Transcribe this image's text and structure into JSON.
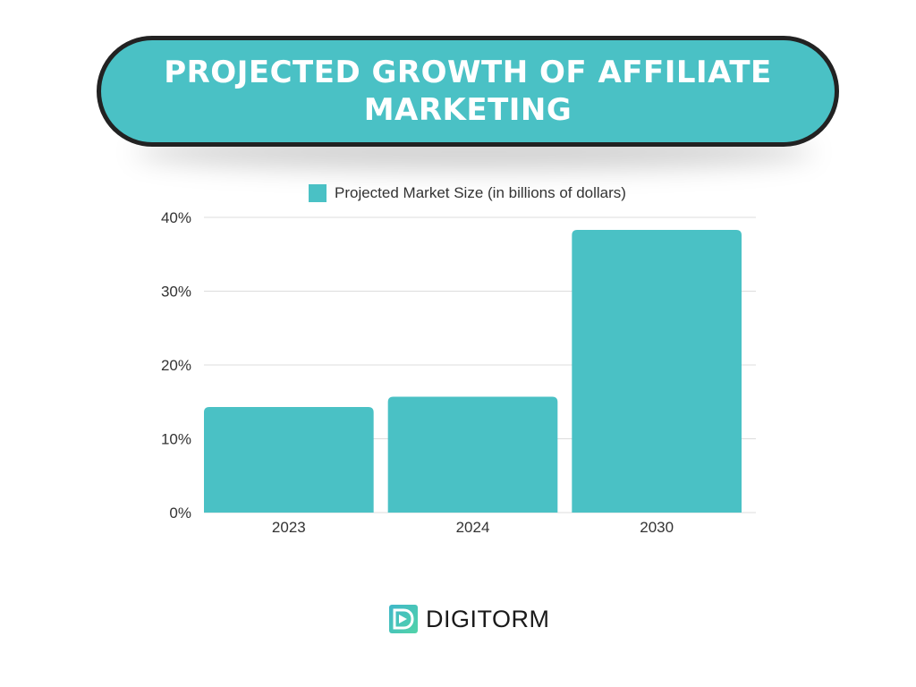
{
  "header": {
    "title": "PROJECTED GROWTH OF AFFILIATE MARKETING"
  },
  "colors": {
    "accent": "#4AC1C5",
    "title_border": "#222222",
    "grid": "#dddddd",
    "axis_text": "#333333"
  },
  "chart_data": {
    "type": "bar",
    "title": "",
    "categories": [
      "2023",
      "2024",
      "2030"
    ],
    "series": [
      {
        "name": "Projected Market Size (in billions of dollars)",
        "values": [
          14.3,
          15.7,
          38.3
        ]
      }
    ],
    "yticks": [
      "0%",
      "10%",
      "20%",
      "30%",
      "40%"
    ],
    "ylim": [
      0,
      40
    ],
    "xlabel": "",
    "ylabel": "",
    "grid": true,
    "legend_position": "top-center"
  },
  "logo": {
    "text": "DIGITORM",
    "icon": "digitorm-logo-icon"
  }
}
